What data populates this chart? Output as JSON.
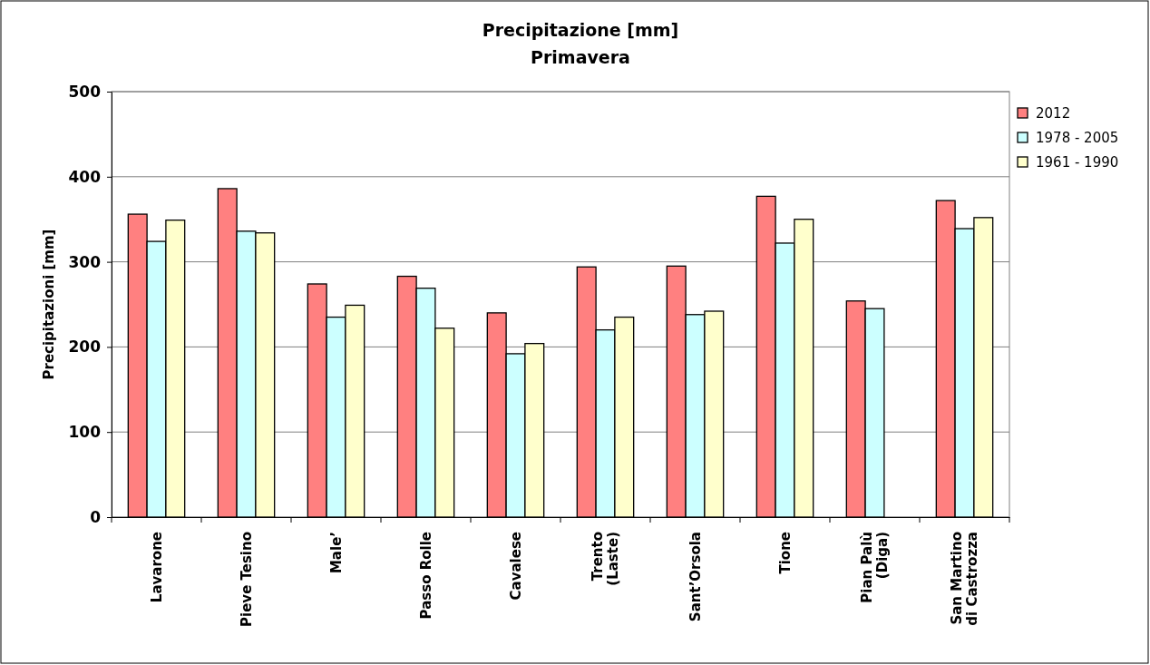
{
  "chart_data": {
    "type": "bar",
    "title": "Precipitazione [mm]",
    "subtitle": "Primavera",
    "ylabel": "Precipitazioni [mm]",
    "categories": [
      "Lavarone",
      "Pieve Tesino",
      "Male’",
      "Passo Rolle",
      "Cavalese",
      "Trento\n(Laste)",
      "Sant’Orsola",
      "Tione",
      "Pian Palù\n(Diga)",
      "San Martino\ndi Castrozza"
    ],
    "series": [
      {
        "name": "2012",
        "color": "#ff8080",
        "values": [
          356,
          386,
          274,
          283,
          240,
          294,
          295,
          377,
          254,
          372
        ]
      },
      {
        "name": "1978 - 2005",
        "color": "#ccffff",
        "values": [
          324,
          336,
          235,
          269,
          192,
          220,
          238,
          322,
          245,
          339
        ]
      },
      {
        "name": "1961 - 1990",
        "color": "#ffffcc",
        "values": [
          349,
          334,
          249,
          222,
          204,
          235,
          242,
          350,
          null,
          352
        ]
      }
    ],
    "ylim": [
      0,
      500
    ],
    "yticks": [
      0,
      100,
      200,
      300,
      400,
      500
    ],
    "grid": "y",
    "legend": "right"
  }
}
